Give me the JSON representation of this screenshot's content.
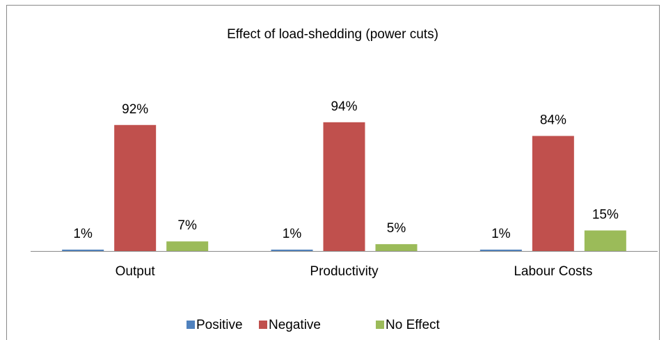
{
  "chart_data": {
    "type": "bar",
    "title": "Effect of load-shedding (power cuts)",
    "categories": [
      "Output",
      "Productivity",
      "Labour Costs"
    ],
    "series": [
      {
        "name": "Positive",
        "color": "#4f81bd",
        "values": [
          1,
          1,
          1
        ],
        "value_labels": [
          "1%",
          "1%",
          "1%"
        ]
      },
      {
        "name": "Negative",
        "color": "#c0504d",
        "values": [
          92,
          94,
          84
        ],
        "value_labels": [
          "92%",
          "94%",
          "84%"
        ]
      },
      {
        "name": "No Effect",
        "color": "#9bbb59",
        "values": [
          7,
          5,
          15
        ],
        "value_labels": [
          "7%",
          "5%",
          "15%"
        ]
      }
    ],
    "legend": "bottom"
  }
}
